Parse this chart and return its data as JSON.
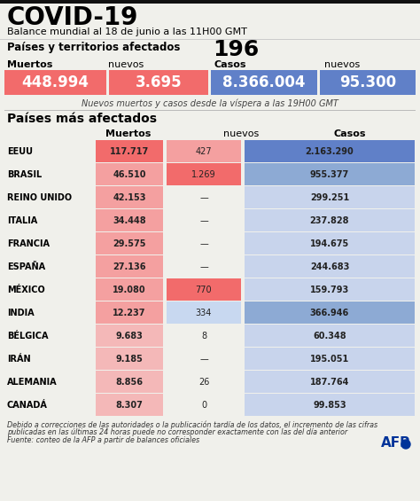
{
  "title": "COVID-19",
  "subtitle": "Balance mundial al 18 de junio a las 11H00 GMT",
  "countries_label": "Países y territorios afectados",
  "countries_count": "196",
  "summary_headers": [
    "Muertos",
    "nuevos",
    "Casos",
    "nuevos"
  ],
  "summary_values": [
    "448.994",
    "3.695",
    "8.366.004",
    "95.300"
  ],
  "summary_note": "Nuevos muertos y casos desde la víspera a las 19H00 GMT",
  "section2_title": "Países más afectados",
  "table_col_headers": [
    "Muertos",
    "nuevos",
    "Casos"
  ],
  "countries": [
    "EEUU",
    "BRASIL",
    "REINO UNIDO",
    "ITALIA",
    "FRANCIA",
    "ESPAÑA",
    "MÉXICO",
    "INDIA",
    "BÉLGICA",
    "IRÁN",
    "ALEMANIA",
    "CANADÁ"
  ],
  "muertos": [
    "117.717",
    "46.510",
    "42.153",
    "34.448",
    "29.575",
    "27.136",
    "19.080",
    "12.237",
    "9.683",
    "9.185",
    "8.856",
    "8.307"
  ],
  "nuevos": [
    "427",
    "1.269",
    "—",
    "—",
    "—",
    "—",
    "770",
    "334",
    "8",
    "—",
    "26",
    "0"
  ],
  "casos": [
    "2.163.290",
    "955.377",
    "299.251",
    "237.828",
    "194.675",
    "244.683",
    "159.793",
    "366.946",
    "60.348",
    "195.051",
    "187.764",
    "99.853"
  ],
  "muertos_bg": [
    "#f26b6b",
    "#f4a0a0",
    "#f4a0a0",
    "#f4a0a0",
    "#f4a0a0",
    "#f4a0a0",
    "#f4a0a0",
    "#f4a0a0",
    "#f4b8b8",
    "#f4b8b8",
    "#f4b8b8",
    "#f4b8b8"
  ],
  "nuevos_bg": [
    "#f4a0a0",
    "#f26b6b",
    null,
    null,
    null,
    null,
    "#f26b6b",
    "#c8d8f0",
    null,
    null,
    null,
    null
  ],
  "casos_bg": [
    "#6080c8",
    "#8daad4",
    "#c8d4ec",
    "#c8d4ec",
    "#c8d4ec",
    "#c8d4ec",
    "#c8d4ec",
    "#8daad4",
    "#c8d4ec",
    "#c8d4ec",
    "#c8d4ec",
    "#c8d4ec"
  ],
  "footnote1": "Debido a correcciones de las autoridades o la publicación tardía de los datos, el incremento de las cifras",
  "footnote2": "publicadas en las últimas 24 horas puede no corresponder exactamente con las del día anterior",
  "footnote3": "Fuente: conteo de la AFP a partir de balances oficiales",
  "bg_color": "#f0f0eb",
  "top_bar_color": "#111111",
  "summary_red": "#f26b6b",
  "summary_blue": "#6080c8"
}
